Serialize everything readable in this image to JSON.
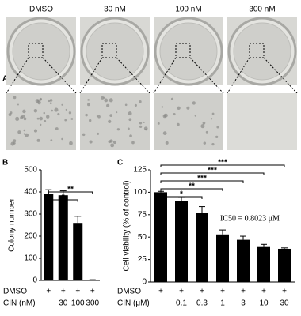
{
  "panel_a": {
    "label": "A",
    "conditions": [
      "DMSO",
      "30 nM",
      "100 nM",
      "300 nM"
    ]
  },
  "chart_data": [
    {
      "type": "bar",
      "panel": "B",
      "ylabel": "Colony number",
      "categories": [
        "-",
        "30",
        "100",
        "300"
      ],
      "category_label": "CIN (nM)",
      "dmso_row": {
        "label": "DMSO",
        "marks": [
          "+",
          "+",
          "+",
          "+"
        ]
      },
      "values": [
        390,
        385,
        260,
        2
      ],
      "errors": [
        20,
        20,
        30,
        1
      ],
      "color": "#000000",
      "ylim": [
        0,
        500
      ],
      "yticks": [
        0,
        100,
        200,
        300,
        400,
        500
      ],
      "significance": [
        {
          "label": "**",
          "between": [
            "-",
            "300"
          ]
        },
        {
          "label": "*",
          "between": [
            "-",
            "100"
          ]
        }
      ]
    },
    {
      "type": "bar",
      "panel": "C",
      "ylabel": "Cell viability (% of control)",
      "categories": [
        "-",
        "0.1",
        "0.3",
        "1",
        "3",
        "10",
        "30"
      ],
      "category_label": "CIN (μM)",
      "dmso_row": {
        "label": "DMSO",
        "marks": [
          "+",
          "+",
          "+",
          "+",
          "+",
          "+",
          "+"
        ]
      },
      "values": [
        100,
        90,
        77,
        53,
        47,
        39,
        37
      ],
      "errors": [
        1,
        5,
        7,
        5,
        4,
        3,
        1
      ],
      "color": "#000000",
      "ylim": [
        0,
        125
      ],
      "yticks": [
        0,
        25,
        50,
        75,
        100,
        125
      ],
      "annotation": "IC50 = 0.8023 μM",
      "significance": [
        {
          "label": "***",
          "between": [
            "-",
            "30"
          ]
        },
        {
          "label": "***",
          "between": [
            "-",
            "10"
          ]
        },
        {
          "label": "***",
          "between": [
            "-",
            "3"
          ]
        },
        {
          "label": "**",
          "between": [
            "-",
            "1"
          ]
        },
        {
          "label": "*",
          "between": [
            "-",
            "0.3"
          ]
        }
      ]
    }
  ]
}
